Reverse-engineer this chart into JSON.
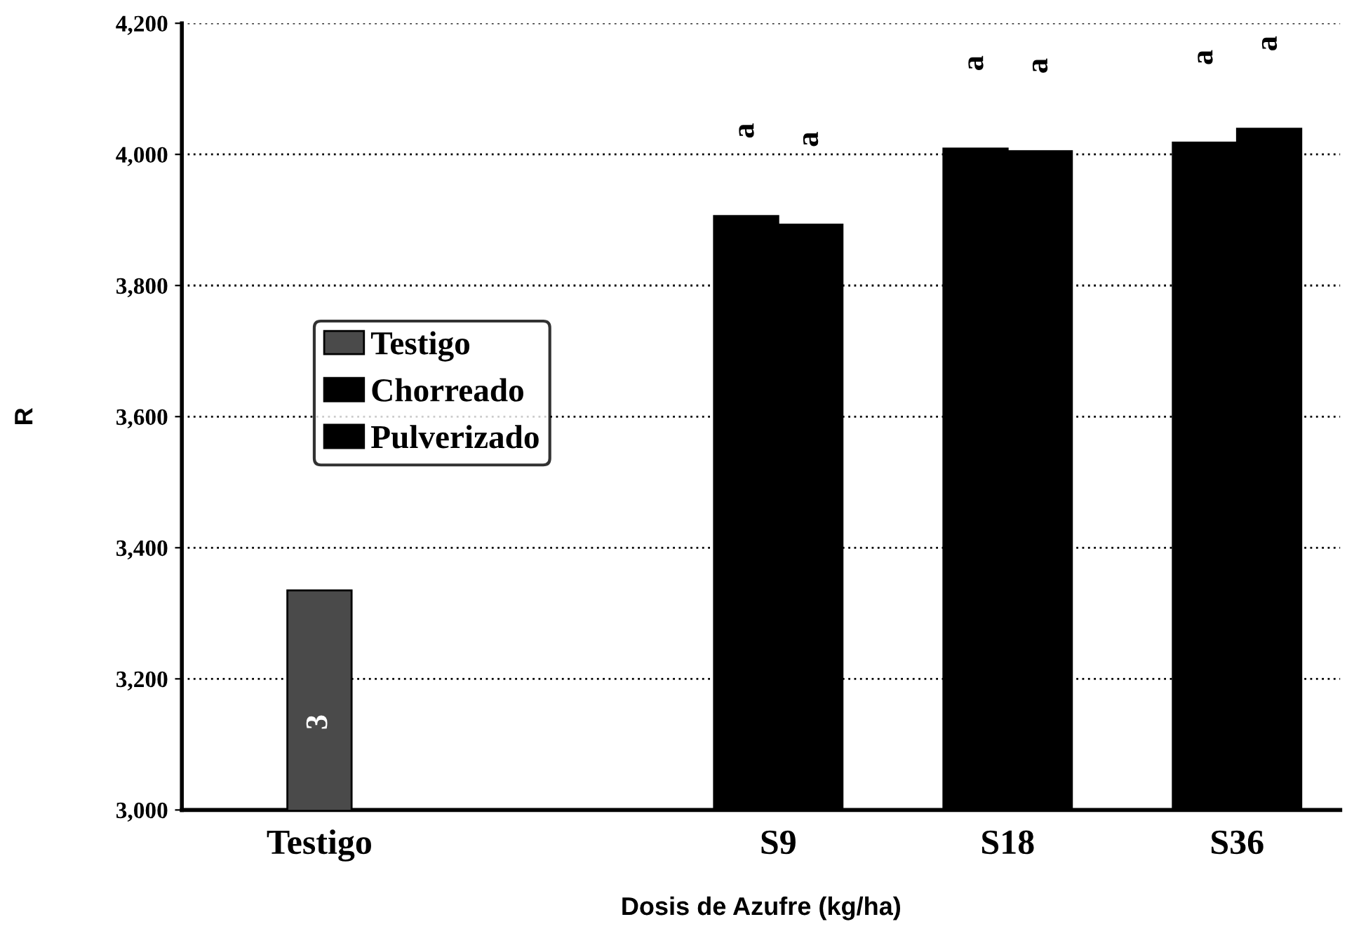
{
  "chart_data": {
    "type": "bar",
    "xlabel": "Dosis de Azufre (kg/ha)",
    "ylabel": "R",
    "categories": [
      "Testigo",
      null,
      "S9",
      "S18",
      "S36"
    ],
    "series": [
      {
        "name": "Testigo",
        "color": "#4a4a4a",
        "values": [
          3335,
          null,
          null,
          null,
          null
        ]
      },
      {
        "name": "Chorreado",
        "color": "#000000",
        "values": [
          null,
          null,
          3906,
          4009,
          4018
        ]
      },
      {
        "name": "Pulverizado",
        "color": "#000000",
        "values": [
          null,
          null,
          3893,
          4005,
          4039
        ]
      }
    ],
    "ylim": [
      3000,
      4200
    ],
    "yticks": [
      {
        "value": 3000,
        "label": "3,000"
      },
      {
        "value": 3200,
        "label": "3,200"
      },
      {
        "value": 3400,
        "label": "3,400"
      },
      {
        "value": 3600,
        "label": "3,600"
      },
      {
        "value": 3800,
        "label": "3,800"
      },
      {
        "value": 4000,
        "label": "4,000"
      },
      {
        "value": 4200,
        "label": "4,200"
      }
    ],
    "grid": "y",
    "legend": "center left",
    "annotations": [
      "3",
      "a",
      "a",
      "a",
      "a",
      "a",
      "a"
    ]
  }
}
